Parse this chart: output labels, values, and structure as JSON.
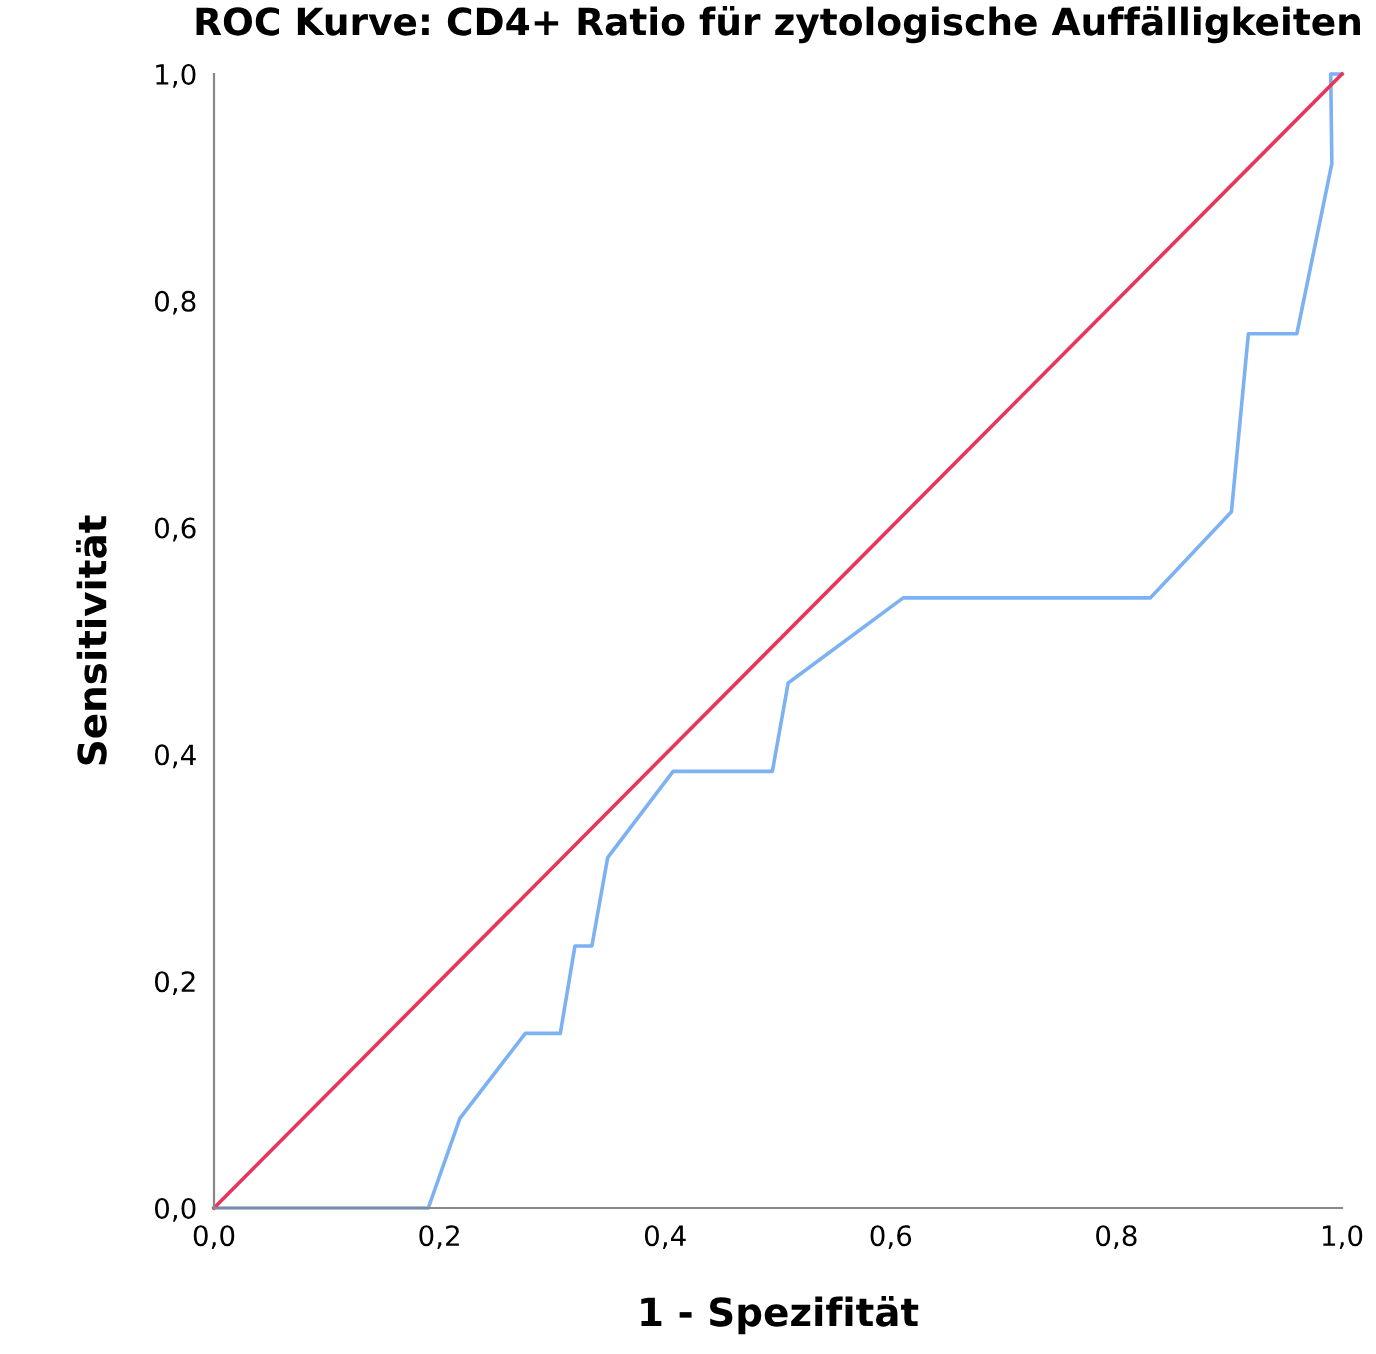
{
  "chart_data": {
    "type": "line",
    "title": "ROC Kurve: CD4+ Ratio für zytologische Auffälligkeiten",
    "xlabel": "1 - Spezifität",
    "ylabel": "Sensitivität",
    "xlim": [
      0,
      1
    ],
    "ylim": [
      0,
      1
    ],
    "xticks": [
      {
        "value": 0,
        "label": "0,0"
      },
      {
        "value": 0.2,
        "label": "0,2"
      },
      {
        "value": 0.4,
        "label": "0,4"
      },
      {
        "value": 0.6,
        "label": "0,6"
      },
      {
        "value": 0.8,
        "label": "0,8"
      },
      {
        "value": 1,
        "label": "1,0"
      }
    ],
    "yticks": [
      {
        "value": 0,
        "label": "0,0"
      },
      {
        "value": 0.2,
        "label": "0,2"
      },
      {
        "value": 0.4,
        "label": "0,4"
      },
      {
        "value": 0.6,
        "label": "0,6"
      },
      {
        "value": 0.8,
        "label": "0,8"
      },
      {
        "value": 1,
        "label": "1,0"
      }
    ],
    "grid": false,
    "legend": false,
    "series": [
      {
        "color": "#7cb1f2",
        "x": [
          0,
          0.19,
          0.218,
          0.276,
          0.307,
          0.32,
          0.335,
          0.349,
          0.407,
          0.495,
          0.509,
          0.611,
          0.83,
          0.902,
          0.917,
          0.96,
          0.991,
          0.99,
          1.0
        ],
        "values": [
          0,
          0,
          0.079,
          0.154,
          0.154,
          0.231,
          0.231,
          0.309,
          0.385,
          0.385,
          0.463,
          0.538,
          0.538,
          0.614,
          0.771,
          0.771,
          0.921,
          1.0,
          1.0
        ]
      },
      {
        "color": "#e8365a",
        "x": [
          0,
          1
        ],
        "values": [
          0,
          1
        ]
      }
    ]
  }
}
